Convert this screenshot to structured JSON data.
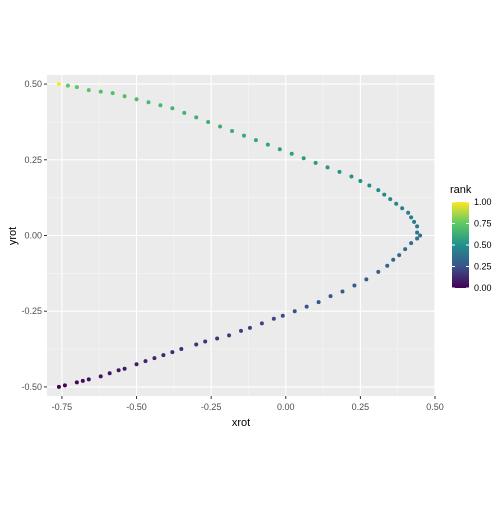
{
  "chart_data": {
    "type": "scatter",
    "title": "",
    "xlabel": "xrot",
    "ylabel": "yrot",
    "xlim": [
      -0.8,
      0.5
    ],
    "ylim": [
      -0.53,
      0.53
    ],
    "x_ticks": [
      -0.75,
      -0.5,
      -0.25,
      0.0,
      0.25,
      0.5
    ],
    "x_tick_labels": [
      "-0.75",
      "-0.50",
      "-0.25",
      "0.00",
      "0.25",
      "0.50"
    ],
    "y_ticks": [
      -0.5,
      -0.25,
      0.0,
      0.25,
      0.5
    ],
    "y_tick_labels": [
      "-0.50",
      "-0.25",
      "0.00",
      "0.25",
      "0.50"
    ],
    "grid": true,
    "color_var": "rank",
    "legend": {
      "title": "rank",
      "position": "right",
      "breaks": [
        1.0,
        0.75,
        0.5,
        0.25,
        0.0
      ],
      "labels": [
        "1.00",
        "0.75",
        "0.50",
        "0.25",
        "0.00"
      ],
      "colormap": "viridis"
    },
    "points": [
      {
        "x": -0.76,
        "y": -0.5,
        "rank": 0.0
      },
      {
        "x": -0.74,
        "y": -0.495,
        "rank": 0.01
      },
      {
        "x": -0.7,
        "y": -0.485,
        "rank": 0.02
      },
      {
        "x": -0.68,
        "y": -0.48,
        "rank": 0.03
      },
      {
        "x": -0.66,
        "y": -0.475,
        "rank": 0.04
      },
      {
        "x": -0.62,
        "y": -0.465,
        "rank": 0.05
      },
      {
        "x": -0.59,
        "y": -0.455,
        "rank": 0.06
      },
      {
        "x": -0.56,
        "y": -0.445,
        "rank": 0.07
      },
      {
        "x": -0.54,
        "y": -0.44,
        "rank": 0.08
      },
      {
        "x": -0.5,
        "y": -0.425,
        "rank": 0.09
      },
      {
        "x": -0.47,
        "y": -0.415,
        "rank": 0.1
      },
      {
        "x": -0.44,
        "y": -0.405,
        "rank": 0.11
      },
      {
        "x": -0.41,
        "y": -0.395,
        "rank": 0.12
      },
      {
        "x": -0.38,
        "y": -0.385,
        "rank": 0.13
      },
      {
        "x": -0.35,
        "y": -0.375,
        "rank": 0.14
      },
      {
        "x": -0.3,
        "y": -0.36,
        "rank": 0.15
      },
      {
        "x": -0.27,
        "y": -0.35,
        "rank": 0.16
      },
      {
        "x": -0.23,
        "y": -0.34,
        "rank": 0.17
      },
      {
        "x": -0.19,
        "y": -0.33,
        "rank": 0.18
      },
      {
        "x": -0.15,
        "y": -0.315,
        "rank": 0.19
      },
      {
        "x": -0.12,
        "y": -0.305,
        "rank": 0.2
      },
      {
        "x": -0.08,
        "y": -0.29,
        "rank": 0.21
      },
      {
        "x": -0.04,
        "y": -0.275,
        "rank": 0.22
      },
      {
        "x": -0.01,
        "y": -0.265,
        "rank": 0.23
      },
      {
        "x": 0.03,
        "y": -0.25,
        "rank": 0.24
      },
      {
        "x": 0.07,
        "y": -0.235,
        "rank": 0.25
      },
      {
        "x": 0.11,
        "y": -0.22,
        "rank": 0.26
      },
      {
        "x": 0.15,
        "y": -0.2,
        "rank": 0.27
      },
      {
        "x": 0.19,
        "y": -0.185,
        "rank": 0.28
      },
      {
        "x": 0.23,
        "y": -0.165,
        "rank": 0.29
      },
      {
        "x": 0.27,
        "y": -0.145,
        "rank": 0.3
      },
      {
        "x": 0.31,
        "y": -0.12,
        "rank": 0.31
      },
      {
        "x": 0.34,
        "y": -0.1,
        "rank": 0.32
      },
      {
        "x": 0.36,
        "y": -0.08,
        "rank": 0.33
      },
      {
        "x": 0.38,
        "y": -0.065,
        "rank": 0.34
      },
      {
        "x": 0.4,
        "y": -0.045,
        "rank": 0.35
      },
      {
        "x": 0.42,
        "y": -0.025,
        "rank": 0.36
      },
      {
        "x": 0.44,
        "y": -0.01,
        "rank": 0.37
      },
      {
        "x": 0.45,
        "y": 0.0,
        "rank": 0.38
      },
      {
        "x": 0.44,
        "y": 0.01,
        "rank": 0.39
      },
      {
        "x": 0.44,
        "y": 0.03,
        "rank": 0.4
      },
      {
        "x": 0.43,
        "y": 0.045,
        "rank": 0.41
      },
      {
        "x": 0.42,
        "y": 0.06,
        "rank": 0.42
      },
      {
        "x": 0.41,
        "y": 0.075,
        "rank": 0.43
      },
      {
        "x": 0.39,
        "y": 0.09,
        "rank": 0.44
      },
      {
        "x": 0.37,
        "y": 0.105,
        "rank": 0.45
      },
      {
        "x": 0.35,
        "y": 0.12,
        "rank": 0.46
      },
      {
        "x": 0.33,
        "y": 0.135,
        "rank": 0.47
      },
      {
        "x": 0.31,
        "y": 0.15,
        "rank": 0.48
      },
      {
        "x": 0.28,
        "y": 0.165,
        "rank": 0.49
      },
      {
        "x": 0.25,
        "y": 0.18,
        "rank": 0.5
      },
      {
        "x": 0.22,
        "y": 0.195,
        "rank": 0.51
      },
      {
        "x": 0.18,
        "y": 0.21,
        "rank": 0.52
      },
      {
        "x": 0.14,
        "y": 0.225,
        "rank": 0.53
      },
      {
        "x": 0.1,
        "y": 0.24,
        "rank": 0.54
      },
      {
        "x": 0.06,
        "y": 0.255,
        "rank": 0.55
      },
      {
        "x": 0.02,
        "y": 0.27,
        "rank": 0.56
      },
      {
        "x": -0.02,
        "y": 0.285,
        "rank": 0.57
      },
      {
        "x": -0.06,
        "y": 0.3,
        "rank": 0.58
      },
      {
        "x": -0.1,
        "y": 0.315,
        "rank": 0.59
      },
      {
        "x": -0.14,
        "y": 0.33,
        "rank": 0.6
      },
      {
        "x": -0.18,
        "y": 0.345,
        "rank": 0.61
      },
      {
        "x": -0.22,
        "y": 0.36,
        "rank": 0.62
      },
      {
        "x": -0.26,
        "y": 0.375,
        "rank": 0.63
      },
      {
        "x": -0.3,
        "y": 0.39,
        "rank": 0.64
      },
      {
        "x": -0.34,
        "y": 0.405,
        "rank": 0.65
      },
      {
        "x": -0.38,
        "y": 0.42,
        "rank": 0.66
      },
      {
        "x": -0.42,
        "y": 0.43,
        "rank": 0.67
      },
      {
        "x": -0.46,
        "y": 0.44,
        "rank": 0.68
      },
      {
        "x": -0.5,
        "y": 0.45,
        "rank": 0.69
      },
      {
        "x": -0.54,
        "y": 0.46,
        "rank": 0.7
      },
      {
        "x": -0.58,
        "y": 0.47,
        "rank": 0.71
      },
      {
        "x": -0.62,
        "y": 0.475,
        "rank": 0.72
      },
      {
        "x": -0.66,
        "y": 0.48,
        "rank": 0.73
      },
      {
        "x": -0.7,
        "y": 0.49,
        "rank": 0.74
      },
      {
        "x": -0.73,
        "y": 0.495,
        "rank": 0.75
      },
      {
        "x": -0.76,
        "y": 0.5,
        "rank": 1.0
      }
    ]
  }
}
